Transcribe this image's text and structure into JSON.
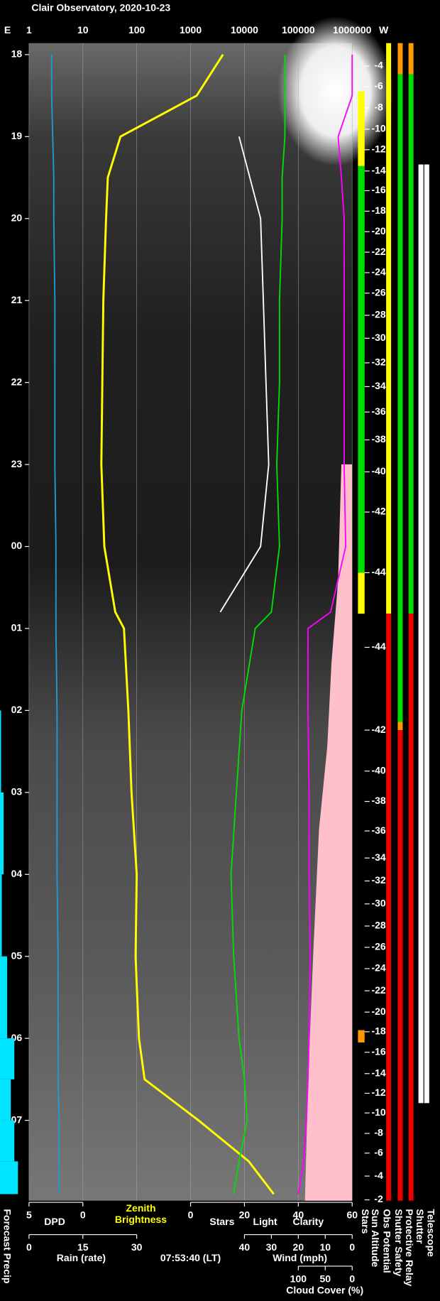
{
  "chart_data": {
    "type": "keogram",
    "title": "Clair Observatory, 2020-10-23",
    "east_label": "E",
    "west_label": "W",
    "timestamp": "07:53:40 (LT)",
    "ylim": [
      17.86,
      31.98
    ],
    "yticks": [
      18,
      19,
      20,
      21,
      22,
      23,
      {
        "value": 24,
        "label": "00"
      },
      {
        "value": 25,
        "label": "01"
      },
      {
        "value": 26,
        "label": "02"
      },
      {
        "value": 27,
        "label": "03"
      },
      {
        "value": 28,
        "label": "04"
      },
      {
        "value": 29,
        "label": "05"
      },
      {
        "value": 30,
        "label": "06"
      },
      {
        "value": 31,
        "label": "07"
      }
    ],
    "log_scale": true,
    "xlim_log": [
      1,
      1000000
    ],
    "xticks_log": [
      1,
      10,
      100,
      1000,
      10000,
      100000,
      1000000
    ],
    "grid": true,
    "axes": {
      "dpd": {
        "xlim": [
          5,
          0
        ],
        "xticks": [
          5,
          0
        ]
      },
      "stars": {
        "xlim": [
          0,
          60
        ],
        "xticks": [
          0,
          20,
          40,
          60
        ]
      },
      "rain": {
        "xlim": [
          0,
          30
        ],
        "xticks": [
          0,
          15,
          30
        ]
      },
      "wind": {
        "xlim": [
          40,
          0
        ],
        "xticks": [
          40,
          30,
          20,
          10,
          0
        ]
      },
      "cloud": {
        "xlim": [
          100,
          0
        ],
        "xticks": [
          100,
          50,
          0
        ]
      }
    },
    "x": [
      18.0,
      18.5,
      19,
      19.5,
      20,
      21,
      22,
      23,
      24,
      24.8,
      25,
      26,
      27,
      28,
      29,
      30,
      30.5,
      31,
      31.5,
      31.9
    ],
    "series": [
      {
        "name": "DPD",
        "color": "#1e9bd7",
        "axis": "dpd",
        "values": [
          2.9,
          2.9,
          2.8,
          2.7,
          2.7,
          2.6,
          2.6,
          2.6,
          2.5,
          2.5,
          2.5,
          2.4,
          2.4,
          2.4,
          2.3,
          2.3,
          2.3,
          2.2,
          2.2,
          2.2
        ]
      },
      {
        "name": "Zenith Brightness",
        "color": "#ffff00",
        "axis": "log",
        "values": [
          4000,
          1300,
          50,
          29,
          27,
          24,
          23,
          22,
          25,
          40,
          58,
          70,
          80,
          100,
          95,
          110,
          140,
          1400,
          12000,
          35000
        ]
      },
      {
        "name": "Stars",
        "color": "#ffffff",
        "axis": "stars",
        "values": [
          null,
          null,
          18,
          22,
          26,
          27,
          28,
          29,
          26,
          11,
          null,
          null,
          null,
          null,
          null,
          null,
          null,
          null,
          null,
          null
        ]
      },
      {
        "name": "Clarity",
        "color": "#00e000",
        "axis": "stars",
        "values": [
          35,
          35,
          35,
          34,
          34,
          33,
          33,
          32,
          33,
          30,
          24,
          19,
          17,
          15,
          16,
          18,
          20,
          21,
          18,
          16
        ]
      },
      {
        "name": "Cloud Cover (%)",
        "color": "#ff00ff",
        "axis": "cloud",
        "values": [
          0,
          0,
          26,
          20,
          15,
          15,
          15,
          15,
          12,
          40,
          82,
          82,
          80,
          80,
          78,
          80,
          82,
          85,
          90,
          100
        ]
      },
      {
        "name": "Forecast Precip",
        "color": "#00e5ff",
        "axis": "rain",
        "values": [
          0,
          0,
          0,
          0,
          0,
          0,
          0,
          0,
          0,
          0,
          0,
          0.3,
          1,
          0.5,
          2,
          4,
          3,
          4,
          5,
          4
        ]
      }
    ],
    "other_labels": [
      {
        "text": "Light",
        "color": "#ffff00"
      },
      {
        "text": "Rain (rate)",
        "color": "#00e5ff"
      },
      {
        "text": "Wind (mph)",
        "color": "#ffb6c1"
      }
    ],
    "sun_altitude": {
      "name": "Sun Altitude",
      "values": [
        -4,
        -6,
        -8,
        -10,
        -12,
        -14,
        -16,
        -18,
        -20,
        -22,
        -24,
        -26,
        -28,
        -30,
        -32,
        -34,
        -36,
        -38,
        -40,
        -42,
        -44,
        -44,
        -42,
        -40,
        -38,
        -36,
        -34,
        -32,
        -30,
        -28,
        -26,
        -24,
        -22,
        -20,
        -18,
        -16,
        -14,
        -12,
        -10,
        -8,
        -6,
        -4,
        -2
      ],
      "x": [
        18.14,
        18.39,
        18.65,
        18.91,
        19.16,
        19.42,
        19.66,
        19.91,
        20.16,
        20.41,
        20.66,
        20.91,
        21.18,
        21.46,
        21.76,
        22.05,
        22.36,
        22.7,
        23.09,
        23.58,
        24.32,
        25.23,
        26.24,
        26.74,
        27.11,
        27.47,
        27.8,
        28.08,
        28.36,
        28.63,
        28.89,
        29.15,
        29.42,
        29.68,
        29.92,
        30.17,
        30.43,
        30.67,
        30.91,
        31.16,
        31.4,
        31.68,
        31.97
      ]
    },
    "status": [
      {
        "name": "Stars",
        "segments": [
          {
            "start": 18.45,
            "end": 19.36,
            "color": "#ffff00"
          },
          {
            "start": 19.36,
            "end": 24.32,
            "color": "#00dd00"
          },
          {
            "start": 24.32,
            "end": 24.82,
            "color": "#ffff00"
          },
          {
            "start": 29.9,
            "end": 30.05,
            "color": "#ff9900"
          }
        ]
      },
      {
        "name": "Obs Potential",
        "segments": [
          {
            "start": 17.86,
            "end": 24.82,
            "color": "#ffff00"
          },
          {
            "start": 24.82,
            "end": 31.98,
            "color": "#ee0000"
          }
        ]
      },
      {
        "name": "Shutter Safety",
        "segments": [
          {
            "start": 17.86,
            "end": 18.24,
            "color": "#ff9900"
          },
          {
            "start": 18.24,
            "end": 26.14,
            "color": "#00dd00"
          },
          {
            "start": 26.14,
            "end": 26.24,
            "color": "#ff9900"
          },
          {
            "start": 26.24,
            "end": 31.98,
            "color": "#ee0000"
          }
        ]
      },
      {
        "name": "Protective Relay",
        "segments": [
          {
            "start": 17.86,
            "end": 18.24,
            "color": "#ff9900"
          },
          {
            "start": 18.24,
            "end": 24.82,
            "color": "#00dd00"
          },
          {
            "start": 24.82,
            "end": 31.98,
            "color": "#ee0000"
          }
        ]
      },
      {
        "name": "Shutter",
        "segments": [
          {
            "start": 19.34,
            "end": 30.79,
            "color": "#ffffff"
          }
        ]
      },
      {
        "name": "Telescope",
        "segments": [
          {
            "start": 19.34,
            "end": 30.79,
            "color": "#ffffff"
          }
        ]
      }
    ]
  }
}
